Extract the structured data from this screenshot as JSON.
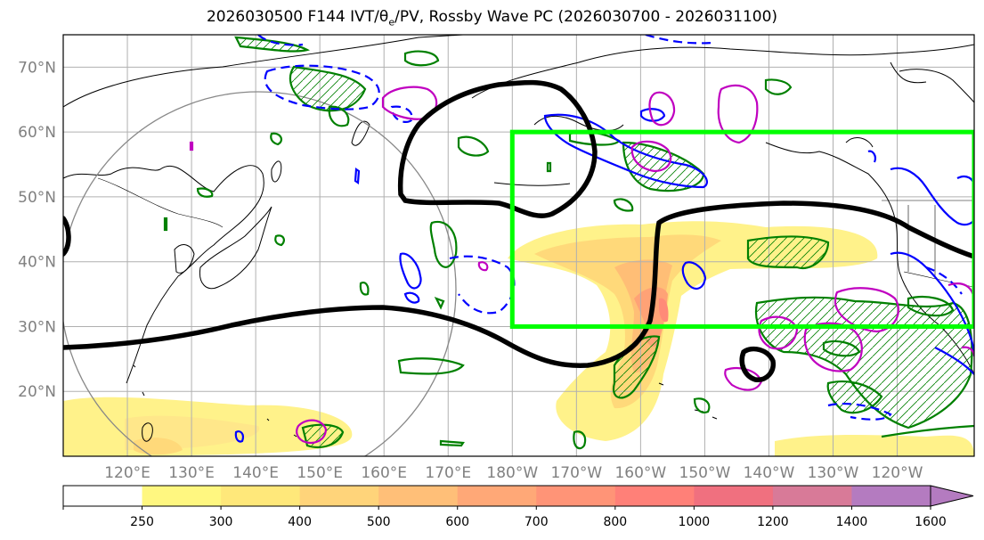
{
  "title": {
    "prefix": "2026030500 F144 IVT/",
    "theta": "θ",
    "theta_sub": "e",
    "suffix": "/PV, Rossby Wave PC (2026030700 - 2026031100)"
  },
  "map": {
    "lon_labels": [
      "120°E",
      "130°E",
      "140°E",
      "150°E",
      "160°E",
      "170°E",
      "180°W",
      "170°W",
      "160°W",
      "150°W",
      "140°W",
      "130°W",
      "120°W"
    ],
    "lon_values": [
      120,
      130,
      140,
      150,
      160,
      170,
      180,
      190,
      200,
      210,
      220,
      230,
      240
    ],
    "lat_labels": [
      "70°N",
      "60°N",
      "50°N",
      "40°N",
      "30°N",
      "20°N"
    ],
    "lat_values": [
      70,
      60,
      50,
      40,
      30,
      20
    ],
    "lon_range": [
      110,
      252
    ],
    "lat_range": [
      10,
      75
    ],
    "box": {
      "lon": [
        180,
        252
      ],
      "lat": [
        30,
        60
      ],
      "color": "#00ff00"
    },
    "contour_colors": {
      "trough_line": "#000000",
      "pv": "#008000",
      "theta_pos": "#0000ff",
      "theta_neg": "#c000c0",
      "coast": "#000000",
      "grid": "#b0b0b0"
    }
  },
  "colorbar": {
    "ticks": [
      "250",
      "300",
      "400",
      "500",
      "600",
      "700",
      "800",
      "1000",
      "1200",
      "1400",
      "1600"
    ],
    "colors": [
      "#ffffff",
      "#fff780",
      "#ffe87a",
      "#ffd47a",
      "#ffbf78",
      "#ffa877",
      "#ff9477",
      "#ff8078",
      "#f0707f",
      "#d87a98",
      "#b47bc0"
    ],
    "extend": "max"
  }
}
